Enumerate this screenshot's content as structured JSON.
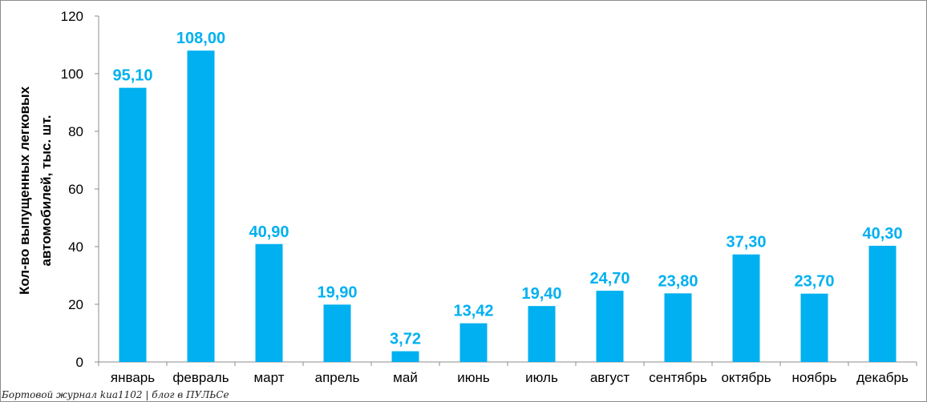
{
  "colors": {
    "bar": "#00b0f0",
    "label": "#00b0f0",
    "axis": "#8c8c8c",
    "text": "#000000"
  },
  "chart_data": {
    "type": "bar",
    "categories": [
      "январь",
      "февраль",
      "март",
      "апрель",
      "май",
      "июнь",
      "июль",
      "август",
      "сентябрь",
      "октябрь",
      "ноябрь",
      "декабрь"
    ],
    "values": [
      95.1,
      108.0,
      40.9,
      19.9,
      3.72,
      13.42,
      19.4,
      24.7,
      23.8,
      37.3,
      23.7,
      40.3
    ],
    "data_labels": [
      "95,10",
      "108,00",
      "40,90",
      "19,90",
      "3,72",
      "13,42",
      "19,40",
      "24,70",
      "23,80",
      "37,30",
      "23,70",
      "40,30"
    ],
    "ylabel_lines": [
      "Кол-во выпущенных легковых",
      "автомобилей, тыс. шт."
    ],
    "ylim": [
      0,
      120
    ],
    "yticks": [
      0,
      20,
      40,
      60,
      80,
      100,
      120
    ],
    "grid": false,
    "legend": "none"
  },
  "watermark": "Бортовой журнал kua1102 | блог в ПУЛЬСе"
}
